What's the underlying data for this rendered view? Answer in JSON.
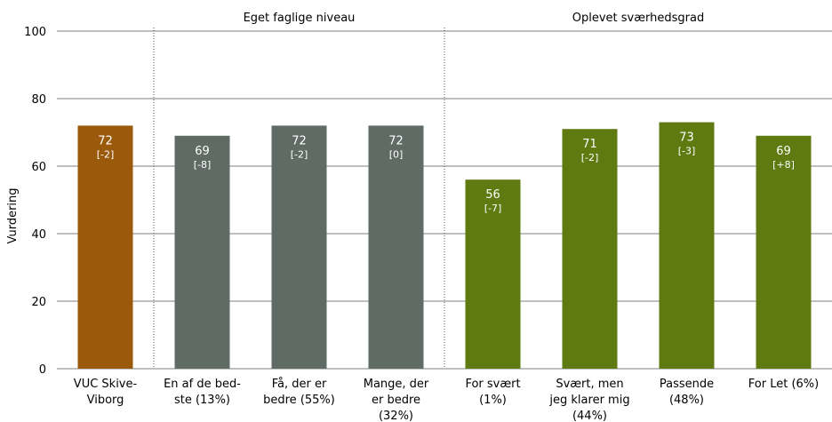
{
  "chart_data": {
    "type": "bar",
    "ylabel": "Vurdering",
    "ylim": [
      0,
      100
    ],
    "yticks": [
      "0",
      "20",
      "40",
      "60",
      "80",
      "100"
    ],
    "groups": [
      {
        "label": "",
        "start": 0,
        "end": 0
      },
      {
        "label": "Eget faglige niveau",
        "start": 1,
        "end": 3
      },
      {
        "label": "Oplevet sværhedsgrad",
        "start": 4,
        "end": 7
      }
    ],
    "categories": [
      [
        "VUC Skive-",
        "Viborg"
      ],
      [
        "En af de bed-",
        "ste (13%)"
      ],
      [
        "Få, der er",
        "bedre (55%)"
      ],
      [
        "Mange, der",
        "er bedre",
        "(32%)"
      ],
      [
        "For svært",
        "(1%)"
      ],
      [
        "Svært, men",
        "jeg klarer mig",
        "(44%)"
      ],
      [
        "Passende",
        "(48%)"
      ],
      [
        "For Let (6%)"
      ]
    ],
    "values": [
      72,
      69,
      72,
      72,
      56,
      71,
      73,
      69
    ],
    "value_labels": [
      "72",
      "69",
      "72",
      "72",
      "56",
      "71",
      "73",
      "69"
    ],
    "deltas": [
      "[-2]",
      "[-8]",
      "[-2]",
      "[0]",
      "[-7]",
      "[-2]",
      "[-3]",
      "[+8]"
    ],
    "colors": [
      "#9b5a0b",
      "#5f6b64",
      "#5f6b64",
      "#5f6b64",
      "#5e7a10",
      "#5e7a10",
      "#5e7a10",
      "#5e7a10"
    ],
    "grid": true
  }
}
